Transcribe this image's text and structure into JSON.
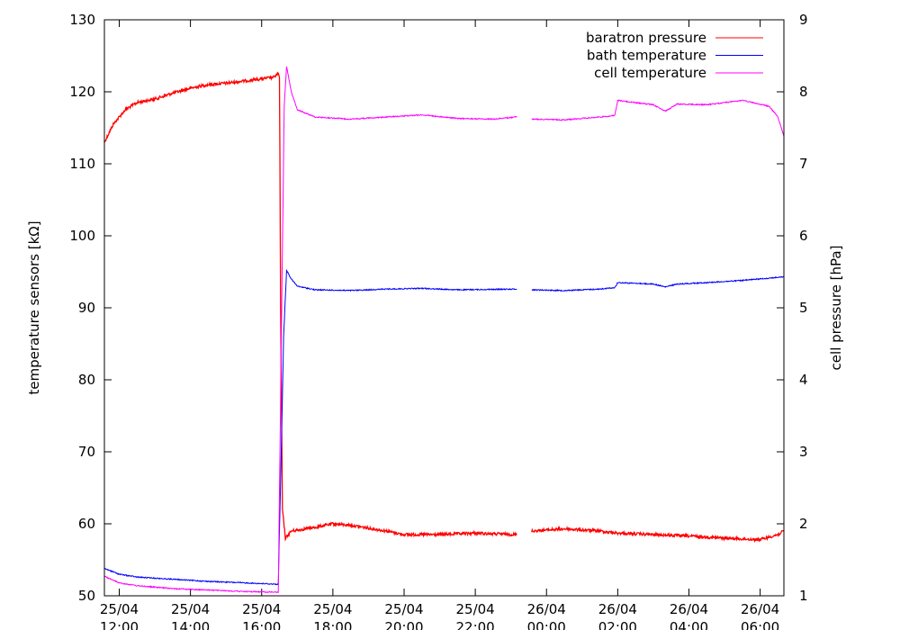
{
  "chart_data": {
    "type": "line",
    "title": "",
    "ylabel": "temperature sensors [kΩ]",
    "y2label": "cell pressure [hPa]",
    "ylim": [
      50,
      130
    ],
    "y2lim": [
      1,
      9
    ],
    "xlim": [
      "2004-04-25T11:35",
      "2004-04-26T06:40"
    ],
    "y_ticks": [
      "50",
      "60",
      "70",
      "80",
      "90",
      "100",
      "110",
      "120",
      "130"
    ],
    "y2_ticks": [
      "1",
      "2",
      "3",
      "4",
      "5",
      "6",
      "7",
      "8",
      "9"
    ],
    "x_ticks": [
      {
        "t": "2004-04-25T12:00",
        "l1": "25/04",
        "l2": "12:00"
      },
      {
        "t": "2004-04-25T14:00",
        "l1": "25/04",
        "l2": "14:00"
      },
      {
        "t": "2004-04-25T16:00",
        "l1": "25/04",
        "l2": "16:00"
      },
      {
        "t": "2004-04-25T18:00",
        "l1": "25/04",
        "l2": "18:00"
      },
      {
        "t": "2004-04-25T20:00",
        "l1": "25/04",
        "l2": "20:00"
      },
      {
        "t": "2004-04-25T22:00",
        "l1": "25/04",
        "l2": "22:00"
      },
      {
        "t": "2004-04-26T00:00",
        "l1": "26/04",
        "l2": "00:00"
      },
      {
        "t": "2004-04-26T02:00",
        "l1": "26/04",
        "l2": "02:00"
      },
      {
        "t": "2004-04-26T04:00",
        "l1": "26/04",
        "l2": "04:00"
      },
      {
        "t": "2004-04-26T06:00",
        "l1": "26/04",
        "l2": "06:00"
      }
    ],
    "legend_position": "top-right",
    "series": [
      {
        "name": "baratron pressure",
        "axis": "right",
        "color": "#ff0000",
        "segments": [
          [
            [
              "2004-04-25T11:35",
              7.3
            ],
            [
              "2004-04-25T11:50",
              7.55
            ],
            [
              "2004-04-25T12:10",
              7.75
            ],
            [
              "2004-04-25T12:30",
              7.85
            ],
            [
              "2004-04-25T13:00",
              7.9
            ],
            [
              "2004-04-25T13:30",
              7.98
            ],
            [
              "2004-04-25T14:00",
              8.05
            ],
            [
              "2004-04-25T14:30",
              8.1
            ],
            [
              "2004-04-25T15:00",
              8.12
            ],
            [
              "2004-04-25T15:30",
              8.15
            ],
            [
              "2004-04-25T16:00",
              8.18
            ],
            [
              "2004-04-25T16:20",
              8.2
            ],
            [
              "2004-04-25T16:28",
              8.25
            ],
            [
              "2004-04-25T16:30",
              8.2
            ],
            [
              "2004-04-25T16:32",
              5.0
            ],
            [
              "2004-04-25T16:35",
              2.2
            ],
            [
              "2004-04-25T16:40",
              1.8
            ],
            [
              "2004-04-25T16:50",
              1.9
            ],
            [
              "2004-04-25T17:30",
              1.95
            ],
            [
              "2004-04-25T18:00",
              2.0
            ],
            [
              "2004-04-25T18:30",
              1.98
            ],
            [
              "2004-04-25T19:30",
              1.9
            ],
            [
              "2004-04-25T20:00",
              1.85
            ],
            [
              "2004-04-25T21:00",
              1.85
            ],
            [
              "2004-04-25T22:00",
              1.87
            ],
            [
              "2004-04-25T23:10",
              1.85
            ]
          ],
          [
            [
              "2004-04-25T23:35",
              1.9
            ],
            [
              "2004-04-26T00:30",
              1.93
            ],
            [
              "2004-04-26T01:30",
              1.9
            ],
            [
              "2004-04-26T02:00",
              1.87
            ],
            [
              "2004-04-26T03:00",
              1.85
            ],
            [
              "2004-04-26T04:00",
              1.83
            ],
            [
              "2004-04-26T05:00",
              1.8
            ],
            [
              "2004-04-26T06:00",
              1.78
            ],
            [
              "2004-04-26T06:30",
              1.85
            ],
            [
              "2004-04-26T06:40",
              1.9
            ]
          ]
        ]
      },
      {
        "name": "bath temperature",
        "axis": "left",
        "color": "#0000ff",
        "segments": [
          [
            [
              "2004-04-25T11:35",
              53.8
            ],
            [
              "2004-04-25T12:00",
              53.0
            ],
            [
              "2004-04-25T12:30",
              52.6
            ],
            [
              "2004-04-25T13:30",
              52.3
            ],
            [
              "2004-04-25T14:30",
              52.0
            ],
            [
              "2004-04-25T15:30",
              51.8
            ],
            [
              "2004-04-25T16:28",
              51.6
            ],
            [
              "2004-04-25T16:33",
              70.0
            ],
            [
              "2004-04-25T16:37",
              86.0
            ],
            [
              "2004-04-25T16:42",
              95.2
            ],
            [
              "2004-04-25T16:50",
              94.0
            ],
            [
              "2004-04-25T17:00",
              93.0
            ],
            [
              "2004-04-25T17:30",
              92.5
            ],
            [
              "2004-04-25T18:30",
              92.4
            ],
            [
              "2004-04-25T19:30",
              92.6
            ],
            [
              "2004-04-25T20:30",
              92.7
            ],
            [
              "2004-04-25T21:30",
              92.5
            ],
            [
              "2004-04-25T23:10",
              92.6
            ]
          ],
          [
            [
              "2004-04-25T23:35",
              92.5
            ],
            [
              "2004-04-26T00:30",
              92.4
            ],
            [
              "2004-04-26T01:30",
              92.6
            ],
            [
              "2004-04-26T01:55",
              92.8
            ],
            [
              "2004-04-26T02:00",
              93.5
            ],
            [
              "2004-04-26T03:00",
              93.3
            ],
            [
              "2004-04-26T03:20",
              92.9
            ],
            [
              "2004-04-26T03:40",
              93.3
            ],
            [
              "2004-04-26T04:30",
              93.5
            ],
            [
              "2004-04-26T05:30",
              93.8
            ],
            [
              "2004-04-26T06:40",
              94.3
            ]
          ]
        ]
      },
      {
        "name": "cell temperature",
        "axis": "left",
        "color": "#ff00ff",
        "segments": [
          [
            [
              "2004-04-25T11:35",
              52.7
            ],
            [
              "2004-04-25T12:00",
              51.8
            ],
            [
              "2004-04-25T12:30",
              51.4
            ],
            [
              "2004-04-25T13:30",
              51.0
            ],
            [
              "2004-04-25T14:30",
              50.8
            ],
            [
              "2004-04-25T15:30",
              50.6
            ],
            [
              "2004-04-25T16:28",
              50.5
            ],
            [
              "2004-04-25T16:33",
              85.0
            ],
            [
              "2004-04-25T16:38",
              118.0
            ],
            [
              "2004-04-25T16:42",
              123.5
            ],
            [
              "2004-04-25T16:50",
              120.0
            ],
            [
              "2004-04-25T17:00",
              117.5
            ],
            [
              "2004-04-25T17:30",
              116.5
            ],
            [
              "2004-04-25T18:30",
              116.2
            ],
            [
              "2004-04-25T19:30",
              116.5
            ],
            [
              "2004-04-25T20:30",
              116.8
            ],
            [
              "2004-04-25T21:30",
              116.3
            ],
            [
              "2004-04-25T22:30",
              116.2
            ],
            [
              "2004-04-25T23:10",
              116.5
            ]
          ],
          [
            [
              "2004-04-25T23:35",
              116.2
            ],
            [
              "2004-04-26T00:30",
              116.1
            ],
            [
              "2004-04-26T01:30",
              116.5
            ],
            [
              "2004-04-26T01:55",
              116.7
            ],
            [
              "2004-04-26T02:00",
              118.8
            ],
            [
              "2004-04-26T03:00",
              118.2
            ],
            [
              "2004-04-26T03:20",
              117.3
            ],
            [
              "2004-04-26T03:40",
              118.3
            ],
            [
              "2004-04-26T04:30",
              118.2
            ],
            [
              "2004-04-26T05:30",
              118.8
            ],
            [
              "2004-04-26T06:15",
              118.0
            ],
            [
              "2004-04-26T06:30",
              116.5
            ],
            [
              "2004-04-26T06:40",
              113.8
            ]
          ]
        ]
      }
    ]
  }
}
